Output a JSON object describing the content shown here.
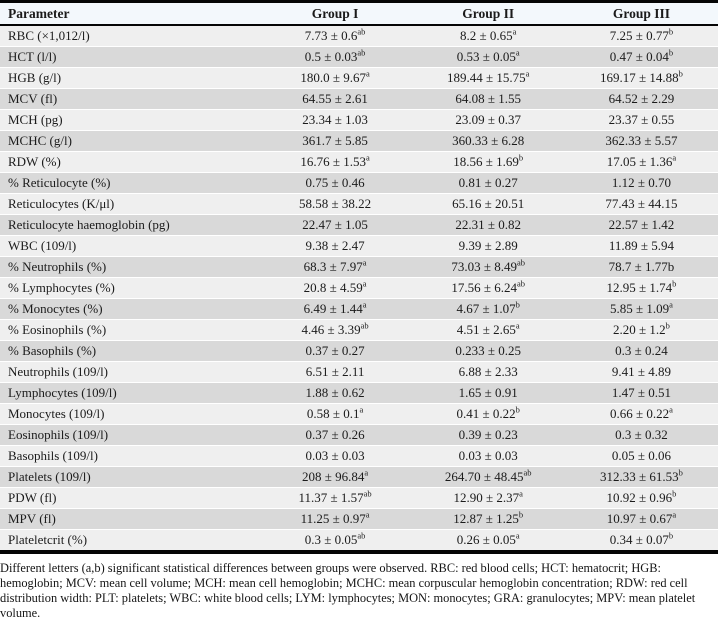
{
  "table": {
    "columns": [
      "Parameter",
      "Group I",
      "Group II",
      "Group III"
    ],
    "rows": [
      {
        "param": "RBC (×1,012/l)",
        "cells": [
          {
            "v": "7.73 ± 0.6",
            "s": "ab"
          },
          {
            "v": "8.2 ± 0.65",
            "s": "a"
          },
          {
            "v": "7.25 ± 0.77",
            "s": "b"
          }
        ]
      },
      {
        "param": "HCT (l/l)",
        "cells": [
          {
            "v": "0.5 ± 0.03",
            "s": "ab"
          },
          {
            "v": "0.53 ± 0.05",
            "s": "a"
          },
          {
            "v": "0.47 ± 0.04",
            "s": "b"
          }
        ]
      },
      {
        "param": "HGB (g/l)",
        "cells": [
          {
            "v": "180.0 ± 9.67",
            "s": "a"
          },
          {
            "v": "189.44 ± 15.75",
            "s": "a"
          },
          {
            "v": "169.17 ± 14.88",
            "s": "b"
          }
        ]
      },
      {
        "param": "MCV (fl)",
        "cells": [
          {
            "v": "64.55 ± 2.61",
            "s": ""
          },
          {
            "v": "64.08 ± 1.55",
            "s": ""
          },
          {
            "v": "64.52 ± 2.29",
            "s": ""
          }
        ]
      },
      {
        "param": "MCH (pg)",
        "cells": [
          {
            "v": "23.34 ± 1.03",
            "s": ""
          },
          {
            "v": "23.09 ± 0.37",
            "s": ""
          },
          {
            "v": "23.37 ± 0.55",
            "s": ""
          }
        ]
      },
      {
        "param": "MCHC (g/l)",
        "cells": [
          {
            "v": "361.7 ± 5.85",
            "s": ""
          },
          {
            "v": "360.33 ± 6.28",
            "s": ""
          },
          {
            "v": "362.33 ± 5.57",
            "s": ""
          }
        ]
      },
      {
        "param": "RDW (%)",
        "cells": [
          {
            "v": "16.76 ± 1.53",
            "s": "a"
          },
          {
            "v": "18.56 ± 1.69",
            "s": "b"
          },
          {
            "v": "17.05 ± 1.36",
            "s": "a"
          }
        ]
      },
      {
        "param": "% Reticulocyte (%)",
        "cells": [
          {
            "v": "0.75 ± 0.46",
            "s": ""
          },
          {
            "v": "0.81 ± 0.27",
            "s": ""
          },
          {
            "v": "1.12 ± 0.70",
            "s": ""
          }
        ]
      },
      {
        "param": "Reticulocytes (K/μl)",
        "cells": [
          {
            "v": "58.58 ± 38.22",
            "s": ""
          },
          {
            "v": "65.16 ± 20.51",
            "s": ""
          },
          {
            "v": "77.43 ± 44.15",
            "s": ""
          }
        ]
      },
      {
        "param": "Reticulocyte haemoglobin (pg)",
        "cells": [
          {
            "v": "22.47 ± 1.05",
            "s": ""
          },
          {
            "v": "22.31 ± 0.82",
            "s": ""
          },
          {
            "v": "22.57 ± 1.42",
            "s": ""
          }
        ]
      },
      {
        "param": "WBC (109/l)",
        "cells": [
          {
            "v": "9.38 ± 2.47",
            "s": ""
          },
          {
            "v": "9.39 ± 2.89",
            "s": ""
          },
          {
            "v": "11.89 ± 5.94",
            "s": ""
          }
        ]
      },
      {
        "param": "% Neutrophils (%)",
        "cells": [
          {
            "v": "68.3 ± 7.97",
            "s": "a"
          },
          {
            "v": "73.03 ± 8.49",
            "s": "ab"
          },
          {
            "v": "78.7 ± 1.77b",
            "s": ""
          }
        ]
      },
      {
        "param": "% Lymphocytes (%)",
        "cells": [
          {
            "v": "20.8 ± 4.59",
            "s": "a"
          },
          {
            "v": "17.56 ± 6.24",
            "s": "ab"
          },
          {
            "v": "12.95 ± 1.74",
            "s": "b"
          }
        ]
      },
      {
        "param": "% Monocytes (%)",
        "cells": [
          {
            "v": "6.49 ± 1.44",
            "s": "a"
          },
          {
            "v": "4.67 ± 1.07",
            "s": "b"
          },
          {
            "v": "5.85 ± 1.09",
            "s": "a"
          }
        ]
      },
      {
        "param": "% Eosinophils (%)",
        "cells": [
          {
            "v": "4.46 ± 3.39",
            "s": "ab"
          },
          {
            "v": "4.51 ± 2.65",
            "s": "a"
          },
          {
            "v": "2.20 ± 1.2",
            "s": "b"
          }
        ]
      },
      {
        "param": "% Basophils (%)",
        "cells": [
          {
            "v": "0.37 ± 0.27",
            "s": ""
          },
          {
            "v": "0.233 ± 0.25",
            "s": ""
          },
          {
            "v": "0.3 ± 0.24",
            "s": ""
          }
        ]
      },
      {
        "param": "Neutrophils (109/l)",
        "cells": [
          {
            "v": "6.51 ± 2.11",
            "s": ""
          },
          {
            "v": "6.88 ± 2.33",
            "s": ""
          },
          {
            "v": "9.41 ± 4.89",
            "s": ""
          }
        ]
      },
      {
        "param": "Lymphocytes (109/l)",
        "cells": [
          {
            "v": "1.88 ± 0.62",
            "s": ""
          },
          {
            "v": "1.65 ± 0.91",
            "s": ""
          },
          {
            "v": "1.47 ± 0.51",
            "s": ""
          }
        ]
      },
      {
        "param": "Monocytes (109/l)",
        "cells": [
          {
            "v": "0.58 ± 0.1",
            "s": "a"
          },
          {
            "v": "0.41 ± 0.22",
            "s": "b"
          },
          {
            "v": "0.66 ± 0.22",
            "s": "a"
          }
        ]
      },
      {
        "param": "Eosinophils (109/l)",
        "cells": [
          {
            "v": "0.37 ± 0.26",
            "s": ""
          },
          {
            "v": "0.39 ± 0.23",
            "s": ""
          },
          {
            "v": "0.3 ± 0.32",
            "s": ""
          }
        ]
      },
      {
        "param": "Basophils (109/l)",
        "cells": [
          {
            "v": "0.03 ± 0.03",
            "s": ""
          },
          {
            "v": "0.03 ± 0.03",
            "s": ""
          },
          {
            "v": "0.05 ± 0.06",
            "s": ""
          }
        ]
      },
      {
        "param": "Platelets (109/l)",
        "cells": [
          {
            "v": "208 ± 96.84",
            "s": "a"
          },
          {
            "v": "264.70 ± 48.45",
            "s": "ab"
          },
          {
            "v": "312.33 ± 61.53",
            "s": "b"
          }
        ]
      },
      {
        "param": "PDW (fl)",
        "cells": [
          {
            "v": "11.37 ± 1.57",
            "s": "ab"
          },
          {
            "v": "12.90 ± 2.37",
            "s": "a"
          },
          {
            "v": "10.92 ± 0.96",
            "s": "b"
          }
        ]
      },
      {
        "param": "MPV (fl)",
        "cells": [
          {
            "v": "11.25 ± 0.97",
            "s": "a"
          },
          {
            "v": "12.87 ± 1.25",
            "s": "b"
          },
          {
            "v": "10.97 ± 0.67",
            "s": "a"
          }
        ]
      },
      {
        "param": "Plateletcrit (%)",
        "cells": [
          {
            "v": "0.3 ± 0.05",
            "s": "ab"
          },
          {
            "v": "0.26 ± 0.05",
            "s": "a"
          },
          {
            "v": "0.34 ± 0.07",
            "s": "b"
          }
        ]
      }
    ]
  },
  "footnote": "Different letters (a,b) significant statistical differences between groups were observed. RBC: red blood cells; HCT: hematocrit; HGB: hemoglobin; MCV: mean cell volume; MCH: mean cell hemoglobin; MCHC: mean corpuscular hemoglobin concentration; RDW: red cell distribution width: PLT: platelets; WBC: white blood cells; LYM: lymphocytes; MON: monocytes; GRA: granulocytes; MPV: mean platelet volume."
}
